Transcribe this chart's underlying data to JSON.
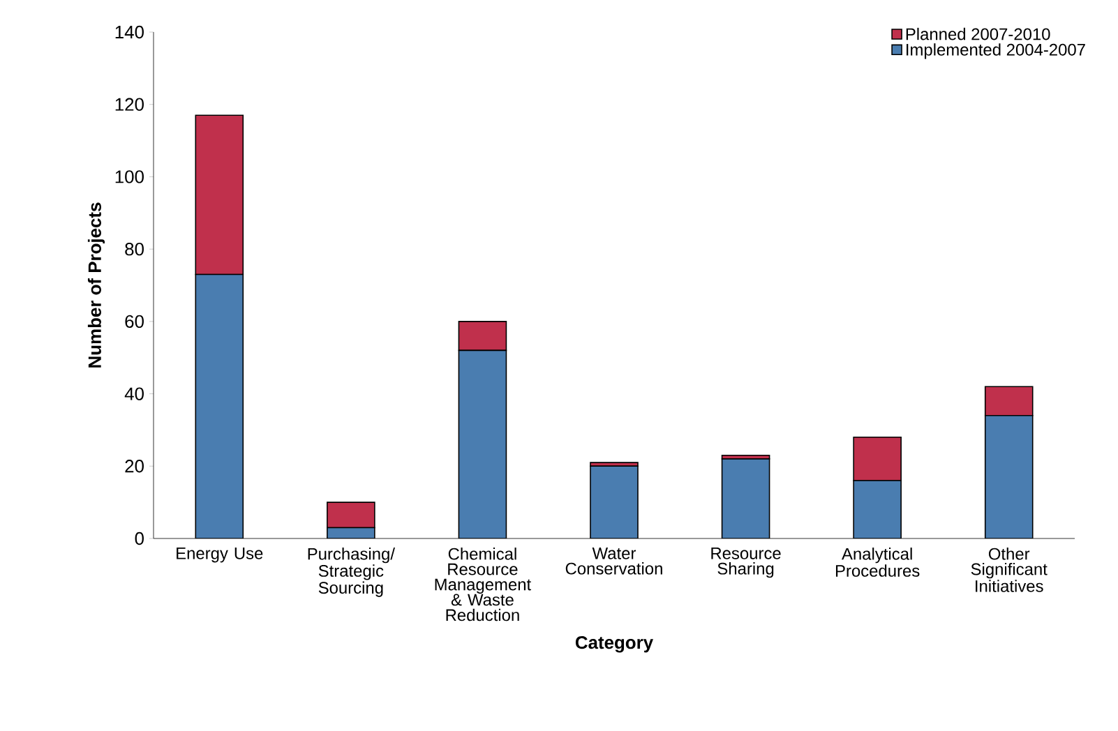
{
  "chart_data": {
    "type": "bar",
    "stacked": true,
    "xlabel": "Category",
    "ylabel": "Number of Projects",
    "categories": [
      "Energy Use",
      "Purchasing/ Strategic Sourcing",
      "Chemical Resource Management & Waste Reduction",
      "Water Conservation",
      "Resource Sharing",
      "Analytical Procedures",
      "Other Significant Initiatives"
    ],
    "series": [
      {
        "name": "Implemented 2004-2007",
        "color": "#4a7db0",
        "values": [
          73,
          3,
          52,
          20,
          22,
          16,
          34
        ]
      },
      {
        "name": "Planned 2007-2010",
        "color": "#c0304c",
        "values": [
          44,
          7,
          8,
          1,
          1,
          12,
          8
        ]
      }
    ],
    "ylim": [
      0,
      140
    ],
    "yticks": [
      0,
      20,
      40,
      60,
      80,
      100,
      120,
      140
    ],
    "grid": false,
    "legend": "top right"
  }
}
